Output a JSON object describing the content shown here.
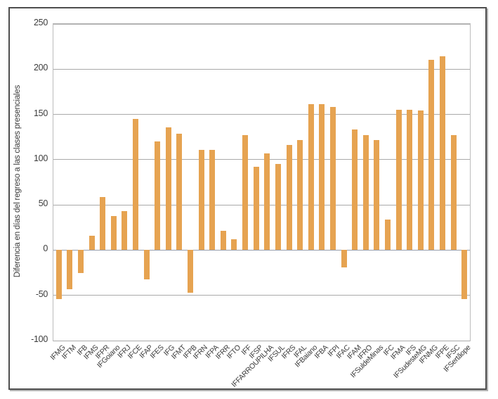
{
  "chart_data": {
    "type": "bar",
    "title": "",
    "xlabel": "",
    "ylabel": "Diferencia en días del regreso a las clases presenciales",
    "ylim": [
      -100,
      250
    ],
    "y_ticks": [
      250,
      200,
      150,
      100,
      50,
      0,
      -50,
      -100
    ],
    "grid": true,
    "legend": false,
    "categories": [
      "IFMG",
      "IFTM",
      "IFB",
      "IFMS",
      "IFPR",
      "IFGoiano",
      "IFRJ",
      "IFCE",
      "IFAP",
      "IFES",
      "IFG",
      "IFMT",
      "IFPB",
      "IFRN",
      "IFPA",
      "IFRR",
      "IFTO",
      "IFF",
      "IFSP",
      "IFFARROUPILHA",
      "IFSUL",
      "IFRS",
      "IFAL",
      "IFBaiano",
      "IFBA",
      "IFPI",
      "IFAC",
      "IFAM",
      "IFRO",
      "IFSuldeMinas",
      "IFC",
      "IFMA",
      "IFS",
      "IFSudesteMG",
      "IFNMG",
      "IFPE",
      "IFSC",
      "IFSertãope"
    ],
    "values": [
      -54,
      -43,
      -25,
      16,
      59,
      38,
      43,
      145,
      -32,
      120,
      136,
      129,
      -47,
      111,
      111,
      21,
      12,
      127,
      92,
      107,
      95,
      116,
      122,
      161,
      161,
      158,
      -19,
      133,
      127,
      122,
      34,
      155,
      155,
      154,
      210,
      214,
      127,
      -54
    ],
    "bar_color": "#E6A351",
    "gridline_color": "#a9a9a9",
    "zero_line_color": "#969dab",
    "axis_text_color": "#3b3b3b",
    "frame_border_color": "#4e4e4e"
  }
}
